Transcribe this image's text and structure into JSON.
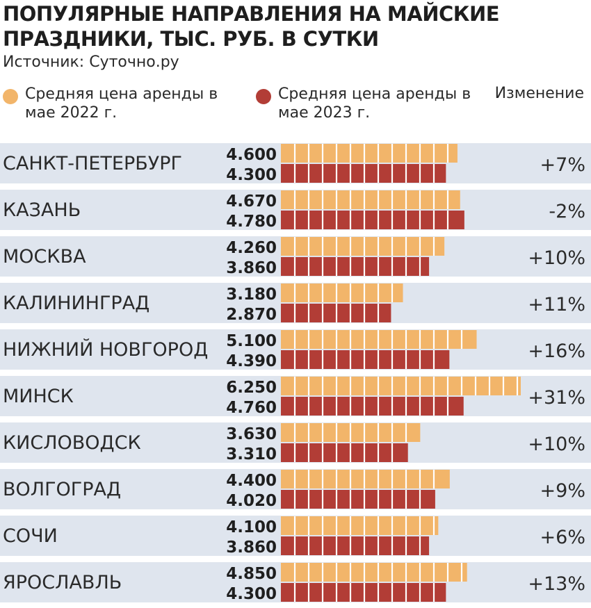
{
  "chart_data": {
    "type": "bar",
    "title": "ПОПУЛЯРНЫЕ НАПРАВЛЕНИЯ НА МАЙСКИЕ ПРАЗДНИКИ, ТЫС. РУБ. В СУТКИ",
    "source": "Источник: Суточно.ру",
    "change_header": "Изменение",
    "categories": [
      "САНКТ-ПЕТЕРБУРГ",
      "КАЗАНЬ",
      "МОСКВА",
      "КАЛИНИНГРАД",
      "НИЖНИЙ НОВГОРОД",
      "МИНСК",
      "КИСЛОВОДСК",
      "ВОЛГОГРАД",
      "СОЧИ",
      "ЯРОСЛАВЛЬ"
    ],
    "series": [
      {
        "name": "Средняя цена аренды в мае 2022 г.",
        "color": "#f2b56a",
        "values": [
          4.6,
          4.67,
          4.26,
          3.18,
          5.1,
          6.25,
          3.63,
          4.4,
          4.1,
          4.85
        ],
        "labels": [
          "4.600",
          "4.670",
          "4.260",
          "3.180",
          "5.100",
          "6.250",
          "3.630",
          "4.400",
          "4.100",
          "4.850"
        ]
      },
      {
        "name": "Средняя цена аренды в мае 2023 г.",
        "color": "#b23d36",
        "values": [
          4.3,
          4.78,
          3.86,
          2.87,
          4.39,
          4.76,
          3.31,
          4.02,
          3.86,
          4.3
        ],
        "labels": [
          "4.300",
          "4.780",
          "3.860",
          "2.870",
          "4.390",
          "4.760",
          "3.310",
          "4.020",
          "3.860",
          "4.300"
        ]
      }
    ],
    "changes": [
      "+7%",
      "-2%",
      "+10%",
      "+11%",
      "+16%",
      "+31%",
      "+10%",
      "+9%",
      "+6%",
      "+13%"
    ],
    "legend": {
      "item_2022": "Средняя цена аренды в мае 2022 г.",
      "item_2023": "Средняя цена аренды в мае 2023 г."
    },
    "colors": {
      "row_band": "#dfe5ee",
      "divider": "#ffffff"
    }
  }
}
